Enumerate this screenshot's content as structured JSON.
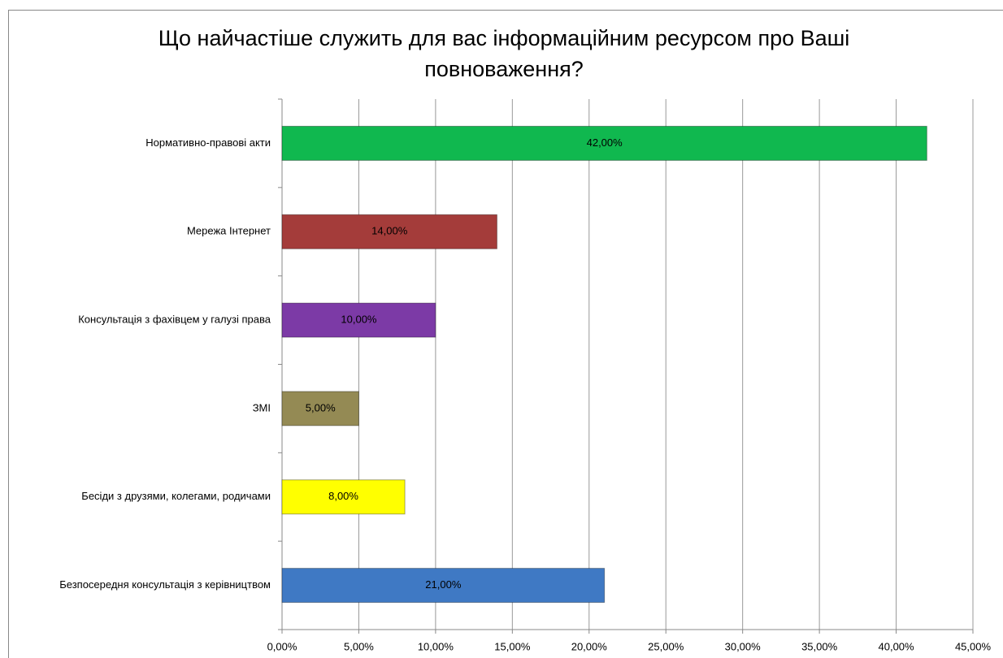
{
  "chart_data": {
    "type": "hbar",
    "title": "Що найчастіше служить для вас інформаційним ресурсом про Ваші повноваження?",
    "categories": [
      "Нормативно-правові акти",
      "Мережа Інтернет",
      "Консультація з фахівцем у галузі права",
      "ЗМІ",
      "Бесіди з друзями, колегами, родичами",
      "Безпосередня консультація з керівництвом"
    ],
    "values": [
      42,
      14,
      10,
      5,
      8,
      21
    ],
    "value_labels": [
      "42,00%",
      "14,00%",
      "10,00%",
      "5,00%",
      "8,00%",
      "21,00%"
    ],
    "colors": [
      "#10b84f",
      "#a43c3a",
      "#7c3aa6",
      "#948a54",
      "#ffff00",
      "#3f79c4"
    ],
    "xlim": [
      0,
      45
    ],
    "xticks": [
      {
        "value": 0,
        "label": "0,00%"
      },
      {
        "value": 5,
        "label": "5,00%"
      },
      {
        "value": 10,
        "label": "10,00%"
      },
      {
        "value": 15,
        "label": "15,00%"
      },
      {
        "value": 20,
        "label": "20,00%"
      },
      {
        "value": 25,
        "label": "25,00%"
      },
      {
        "value": 30,
        "label": "30,00%"
      },
      {
        "value": 35,
        "label": "35,00%"
      },
      {
        "value": 40,
        "label": "40,00%"
      },
      {
        "value": 45,
        "label": "45,00%"
      }
    ],
    "grid": true
  }
}
